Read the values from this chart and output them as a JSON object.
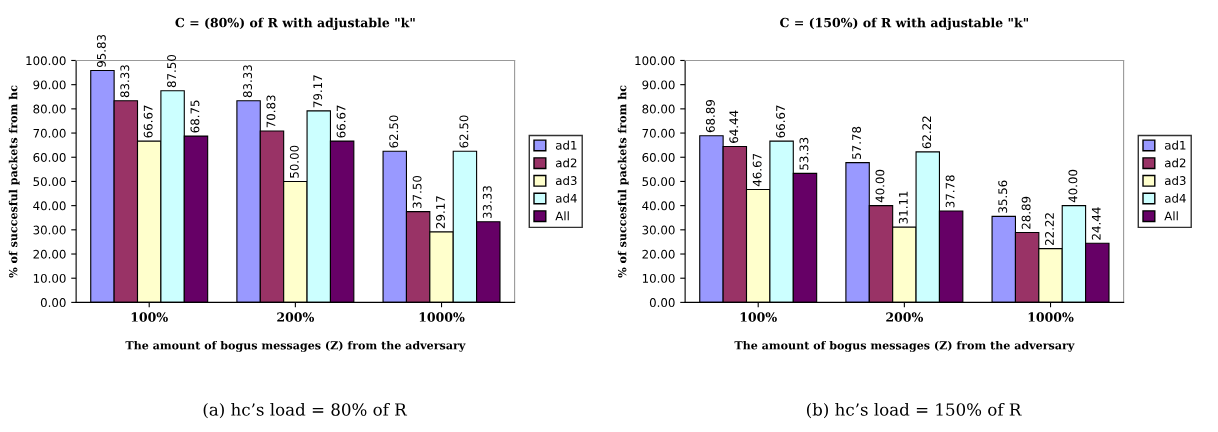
{
  "chart_data": [
    {
      "type": "bar",
      "title": "C = (80%) of R with adjustable \"k\"",
      "xlabel": "The amount of bogus messages (Z) from the adversary",
      "ylabel": "% of succesful packets from hc",
      "categories": [
        "100%",
        "200%",
        "1000%"
      ],
      "series": [
        {
          "name": "ad1",
          "color": "#9999ff",
          "values": [
            95.83,
            83.33,
            62.5
          ],
          "value_labels": [
            "95.83",
            "83.33",
            "62.50"
          ]
        },
        {
          "name": "ad2",
          "color": "#993366",
          "values": [
            83.33,
            70.83,
            37.5
          ],
          "value_labels": [
            "83.33",
            "70.83",
            "37.50"
          ]
        },
        {
          "name": "ad3",
          "color": "#ffffcc",
          "values": [
            66.67,
            50.0,
            29.17
          ],
          "value_labels": [
            "66.67",
            "50.00",
            "29.17"
          ]
        },
        {
          "name": "ad4",
          "color": "#ccffff",
          "values": [
            87.5,
            79.17,
            62.5
          ],
          "value_labels": [
            "87.50",
            "79.17",
            "62.50"
          ]
        },
        {
          "name": "All",
          "color": "#660066",
          "values": [
            68.75,
            66.67,
            33.33
          ],
          "value_labels": [
            "68.75",
            "66.67",
            "33.33"
          ]
        }
      ],
      "ylim": [
        0,
        100
      ],
      "yticks": [
        {
          "value": 0,
          "label": "0.00"
        },
        {
          "value": 10,
          "label": "10.00"
        },
        {
          "value": 20,
          "label": "20.00"
        },
        {
          "value": 30,
          "label": "30.00"
        },
        {
          "value": 40,
          "label": "40.00"
        },
        {
          "value": 50,
          "label": "50.00"
        },
        {
          "value": 60,
          "label": "60.00"
        },
        {
          "value": 70,
          "label": "70.00"
        },
        {
          "value": 80,
          "label": "80.00"
        },
        {
          "value": 90,
          "label": "90.00"
        },
        {
          "value": 100,
          "label": "100.00"
        }
      ],
      "legend": "right",
      "grid": false,
      "annotations": [
        "(a) hc’s load = 80% of R"
      ]
    },
    {
      "type": "bar",
      "title": "C = (150%) of R with adjustable \"k\"",
      "xlabel": "The amount of bogus messages (Z) from the adversary",
      "ylabel": "% of succesful packets from hc",
      "categories": [
        "100%",
        "200%",
        "1000%"
      ],
      "series": [
        {
          "name": "ad1",
          "color": "#9999ff",
          "values": [
            68.89,
            57.78,
            35.56
          ],
          "value_labels": [
            "68.89",
            "57.78",
            "35.56"
          ]
        },
        {
          "name": "ad2",
          "color": "#993366",
          "values": [
            64.44,
            40.0,
            28.89
          ],
          "value_labels": [
            "64.44",
            "40.00",
            "28.89"
          ]
        },
        {
          "name": "ad3",
          "color": "#ffffcc",
          "values": [
            46.67,
            31.11,
            22.22
          ],
          "value_labels": [
            "46.67",
            "31.11",
            "22.22"
          ]
        },
        {
          "name": "ad4",
          "color": "#ccffff",
          "values": [
            66.67,
            62.22,
            40.0
          ],
          "value_labels": [
            "66.67",
            "62.22",
            "40.00"
          ]
        },
        {
          "name": "All",
          "color": "#660066",
          "values": [
            53.33,
            37.78,
            24.44
          ],
          "value_labels": [
            "53.33",
            "37.78",
            "24.44"
          ]
        }
      ],
      "ylim": [
        0,
        100
      ],
      "yticks": [
        {
          "value": 0,
          "label": "0.00"
        },
        {
          "value": 10,
          "label": "10.00"
        },
        {
          "value": 20,
          "label": "20.00"
        },
        {
          "value": 30,
          "label": "30.00"
        },
        {
          "value": 40,
          "label": "40.00"
        },
        {
          "value": 50,
          "label": "50.00"
        },
        {
          "value": 60,
          "label": "60.00"
        },
        {
          "value": 70,
          "label": "70.00"
        },
        {
          "value": 80,
          "label": "80.00"
        },
        {
          "value": 90,
          "label": "90.00"
        },
        {
          "value": 100,
          "label": "100.00"
        }
      ],
      "legend": "right",
      "grid": false,
      "annotations": [
        "(b) hc’s load = 150% of R"
      ]
    }
  ]
}
